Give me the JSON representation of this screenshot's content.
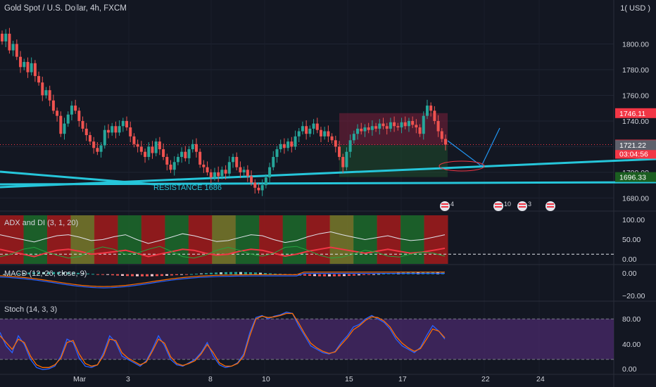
{
  "header": {
    "title": "Gold Spot / U.S. Dollar, 4h, FXCM",
    "currency": "USD"
  },
  "chart_data": [
    {
      "type": "candlestick",
      "title": "Gold Spot / U.S. Dollar, 4h, FXCM",
      "price_axis": [
        1680,
        1700,
        1720,
        1740,
        1760,
        1780,
        1800
      ],
      "price_axis_labels": [
        "1680.00",
        "1700.00",
        "1720.00",
        "1740.00",
        "1760.00",
        "1780.00",
        "1800.00"
      ],
      "ylim": [
        1672,
        1820
      ],
      "x_labels": [
        "Mar",
        "3",
        "8",
        "10",
        "15",
        "17",
        "22",
        "24"
      ],
      "closes": [
        1802,
        1808,
        1795,
        1800,
        1790,
        1782,
        1786,
        1778,
        1785,
        1775,
        1770,
        1760,
        1764,
        1756,
        1748,
        1744,
        1730,
        1738,
        1745,
        1752,
        1748,
        1740,
        1734,
        1729,
        1724,
        1719,
        1716,
        1721,
        1733,
        1731,
        1736,
        1731,
        1736,
        1740,
        1735,
        1728,
        1722,
        1720,
        1716,
        1712,
        1720,
        1715,
        1724,
        1718,
        1712,
        1706,
        1702,
        1708,
        1712,
        1716,
        1711,
        1718,
        1722,
        1716,
        1706,
        1704,
        1700,
        1696,
        1700,
        1697,
        1702,
        1699,
        1708,
        1712,
        1704,
        1700,
        1702,
        1697,
        1692,
        1688,
        1686,
        1690,
        1696,
        1704,
        1712,
        1718,
        1722,
        1719,
        1724,
        1720,
        1728,
        1732,
        1736,
        1730,
        1734,
        1738,
        1733,
        1728,
        1732,
        1728,
        1725,
        1720,
        1712,
        1704,
        1716,
        1725,
        1730,
        1734,
        1732,
        1735,
        1733,
        1736,
        1734,
        1738,
        1736,
        1734,
        1739,
        1736,
        1735,
        1739,
        1736,
        1740,
        1737,
        1735,
        1730,
        1744,
        1752,
        1748,
        1740,
        1732,
        1726,
        1721.61
      ],
      "ohlc_note": "approximate 4h candles read from chart",
      "price_tags": [
        {
          "value": 1746.11,
          "label": "1746.11",
          "color": "#f23645"
        },
        {
          "value": 1721.61,
          "label": "1721.61",
          "sublabel": "03:04:56",
          "color": "#f23645"
        },
        {
          "value": 1721.22,
          "label": "1721.22",
          "color": "#5d606b"
        },
        {
          "value": 1696.33,
          "label": "1696.33",
          "color": "#1b5e20"
        }
      ],
      "annotations": [
        {
          "text": "RESISTANCE 1686",
          "color": "#26c6da"
        }
      ],
      "event_badges": [
        {
          "icon": "us-flag-icon",
          "count": "4"
        },
        {
          "icon": "us-flag-icon",
          "count": "10"
        },
        {
          "icon": "us-flag-icon",
          "count": "3"
        },
        {
          "icon": "us-flag-icon",
          "count": ""
        }
      ]
    },
    {
      "type": "line",
      "title": "ADX and DI (3, 1, 20)",
      "axis_labels": [
        "100.00",
        "50.00",
        "0.00"
      ],
      "ylim": [
        0,
        100
      ],
      "series": [
        {
          "values": [
            60,
            55,
            50,
            45,
            52,
            58,
            60,
            55,
            48,
            50,
            56,
            60,
            50,
            42,
            48,
            55,
            62,
            58,
            52,
            46,
            48,
            54,
            60,
            58,
            50,
            44,
            48,
            56,
            62,
            66,
            60,
            55,
            50,
            54,
            58,
            52,
            48,
            50,
            55,
            60
          ]
        },
        {
          "values": [
            30,
            25,
            20,
            15,
            22,
            28,
            30,
            26,
            20,
            22,
            25,
            28,
            22,
            15,
            20,
            25,
            30,
            28,
            22,
            18,
            20,
            26,
            30,
            28,
            22,
            16,
            20,
            26,
            30,
            34,
            30,
            26,
            22,
            26,
            30,
            26,
            22,
            24,
            28,
            32
          ]
        },
        {
          "values": [
            15,
            20,
            30,
            34,
            25,
            18,
            12,
            15,
            28,
            35,
            30,
            20,
            22,
            30,
            36,
            26,
            15,
            12,
            18,
            28,
            34,
            28,
            20,
            16,
            22,
            34,
            36,
            28,
            18,
            12,
            14,
            20,
            28,
            24,
            16,
            14,
            20,
            24,
            22,
            16
          ]
        }
      ]
    },
    {
      "type": "bar",
      "title": "MACD (12, 26, close, 9)",
      "axis_labels": [
        "0.00",
        "−20.00"
      ],
      "ylim": [
        -30,
        8
      ]
    },
    {
      "type": "line",
      "title": "Stoch (14, 3, 3)",
      "axis_labels": [
        "80.00",
        "40.00",
        "0.00"
      ],
      "ylim": [
        0,
        100
      ],
      "series": [
        {
          "values": [
            60,
            40,
            30,
            55,
            42,
            20,
            8,
            5,
            6,
            10,
            25,
            50,
            45,
            22,
            10,
            8,
            12,
            30,
            55,
            45,
            25,
            20,
            15,
            10,
            18,
            35,
            55,
            40,
            20,
            12,
            10,
            15,
            20,
            30,
            45,
            25,
            12,
            8,
            10,
            15,
            28,
            60,
            82,
            85,
            80,
            84,
            86,
            90,
            88,
            70,
            55,
            40,
            35,
            30,
            28,
            32,
            45,
            55,
            68,
            72,
            80,
            85,
            80,
            75,
            65,
            50,
            40,
            35,
            30,
            38,
            55,
            70,
            62,
            50
          ]
        },
        {
          "values": [
            55,
            45,
            35,
            50,
            45,
            25,
            12,
            8,
            8,
            12,
            22,
            45,
            48,
            28,
            14,
            10,
            12,
            26,
            50,
            48,
            30,
            22,
            17,
            12,
            16,
            32,
            50,
            44,
            24,
            14,
            11,
            14,
            18,
            28,
            42,
            30,
            15,
            10,
            10,
            14,
            25,
            55,
            80,
            84,
            82,
            83,
            85,
            88,
            88,
            74,
            58,
            44,
            37,
            32,
            29,
            31,
            42,
            52,
            64,
            70,
            78,
            83,
            82,
            77,
            68,
            54,
            44,
            37,
            32,
            36,
            50,
            65,
            62,
            52
          ]
        }
      ]
    }
  ],
  "price_axis_top_label": "1( USD )"
}
